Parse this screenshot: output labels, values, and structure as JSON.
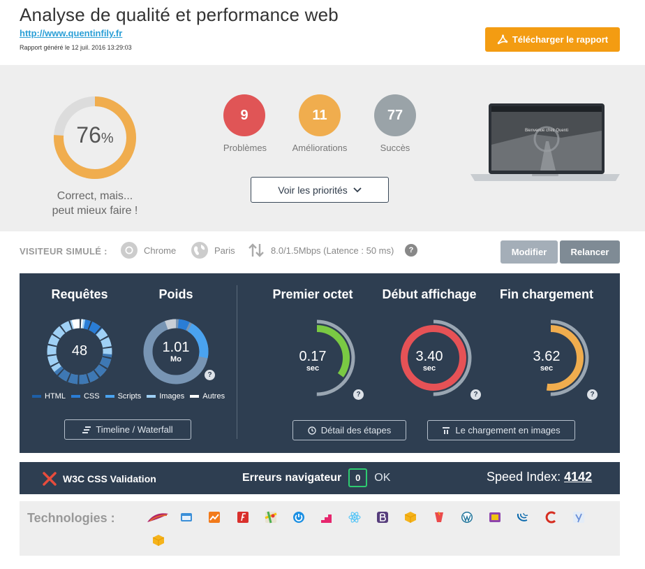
{
  "header": {
    "title": "Analyse de qualité et performance web",
    "url": "http://www.quentinfily.fr",
    "date": "Rapport généré le 12 juil. 2016 13:29:03",
    "download_label": "Télécharger le rapport"
  },
  "score": {
    "value": "76",
    "percent_sign": "%",
    "fraction": 0.76,
    "verdict_line1": "Correct, mais...",
    "verdict_line2": "peut mieux faire !",
    "color": "#f0ad4e"
  },
  "stats": [
    {
      "count": "9",
      "label": "Problèmes",
      "color": "#e05556"
    },
    {
      "count": "11",
      "label": "Améliorations",
      "color": "#f0ad4e"
    },
    {
      "count": "77",
      "label": "Succès",
      "color": "#9aa3a8"
    }
  ],
  "priorities_label": "Voir les priorités",
  "laptop_screen_text": "Bienvenue chez Quenti",
  "visitor": {
    "label": "VISITEUR SIMULÉ :",
    "browser": "Chrome",
    "location": "Paris",
    "connection": "8.0/1.5Mbps (Latence : 50 ms)",
    "help": "?",
    "modify_label": "Modifier",
    "rerun_label": "Relancer"
  },
  "metrics": {
    "requests": {
      "title": "Requêtes",
      "value": "48"
    },
    "weight": {
      "title": "Poids",
      "value": "1.01",
      "unit": "Mo"
    },
    "legend": [
      {
        "label": "HTML",
        "color": "#1e5fa8"
      },
      {
        "label": "CSS",
        "color": "#2a7dd6"
      },
      {
        "label": "Scripts",
        "color": "#4aa3f0"
      },
      {
        "label": "Images",
        "color": "#9fd0f5"
      },
      {
        "label": "Autres",
        "color": "#ffffff"
      }
    ],
    "first_byte": {
      "title": "Premier octet",
      "value": "0.17",
      "unit": "sec",
      "color": "#7ac943",
      "fraction": 0.35
    },
    "start_render": {
      "title": "Début affichage",
      "value": "3.40",
      "unit": "sec",
      "color": "#e65256",
      "fraction": 1.0
    },
    "load_end": {
      "title": "Fin chargement",
      "value": "3.62",
      "unit": "sec",
      "color": "#f0ad4e",
      "fraction": 0.52
    },
    "help": "?",
    "timeline_label": "Timeline / Waterfall",
    "steps_label": "Détail des étapes",
    "images_label": "Le chargement en images"
  },
  "validation": {
    "w3c_label": "W3C CSS Validation",
    "nav_errors_label": "Erreurs navigateur",
    "nav_errors_count": "0",
    "nav_errors_status": "OK",
    "speed_index_label": "Speed Index:",
    "speed_index_value": "4142"
  },
  "technologies": {
    "label": "Technologies :",
    "items": [
      "apache-icon",
      "browser-window-icon",
      "chart-icon",
      "font-icon",
      "google-maps-icon",
      "power-icon",
      "stairs-icon",
      "react-icon",
      "bootstrap-icon",
      "box-icon",
      "gulp-icon",
      "wordpress-icon",
      "gzip-icon",
      "jquery-icon",
      "c-icon",
      "yoast-icon",
      "package-icon"
    ]
  }
}
